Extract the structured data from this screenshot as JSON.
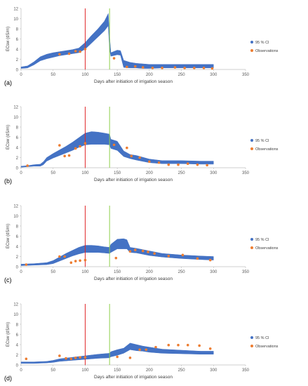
{
  "chart_data": [
    {
      "type": "scatter",
      "panel_label": "(a)",
      "xlabel": "Days after initiation of irrigation season",
      "ylabel": "ECsw (dS/m)",
      "xlim": [
        0,
        350
      ],
      "ylim": [
        0,
        12
      ],
      "xticks": [
        0,
        50,
        100,
        150,
        200,
        250,
        300,
        350
      ],
      "yticks": [
        0,
        2,
        4,
        6,
        8,
        10,
        12
      ],
      "grid": false,
      "legend_position": "right",
      "vlines": [
        {
          "x": 100,
          "color": "#e0262a"
        },
        {
          "x": 138,
          "color": "#8fcf4a"
        }
      ],
      "series": [
        {
          "name": "95 % CI",
          "kind": "band",
          "color": "#4472c4",
          "x": [
            0,
            10,
            20,
            30,
            40,
            50,
            60,
            70,
            80,
            90,
            100,
            110,
            120,
            130,
            136,
            138,
            140,
            150,
            155,
            160,
            170,
            180,
            190,
            200,
            220,
            250,
            280,
            300
          ],
          "low": [
            0.2,
            0.3,
            0.9,
            1.7,
            2.1,
            2.4,
            2.7,
            2.9,
            3.1,
            3.3,
            4.0,
            5.2,
            6.4,
            7.6,
            8.6,
            4.0,
            2.6,
            2.9,
            2.8,
            0.4,
            0.3,
            0.3,
            0.2,
            0.2,
            0.3,
            0.3,
            0.3,
            0.3
          ],
          "high": [
            0.5,
            0.7,
            1.5,
            2.5,
            3.0,
            3.3,
            3.5,
            3.7,
            3.9,
            4.2,
            5.3,
            6.7,
            8.0,
            9.5,
            11.0,
            6.5,
            3.3,
            3.8,
            3.7,
            1.8,
            1.4,
            1.2,
            1.1,
            1.0,
            1.0,
            1.0,
            1.0,
            1.0
          ]
        },
        {
          "name": "Observations",
          "kind": "points",
          "color": "#ed7d31",
          "x": [
            60,
            75,
            85,
            92,
            100,
            145,
            165,
            178,
            190,
            205,
            220,
            240,
            255,
            270,
            285,
            298
          ],
          "y": [
            3.0,
            3.1,
            3.6,
            3.5,
            4.0,
            2.2,
            0.5,
            0.6,
            0.4,
            0.3,
            0.3,
            0.4,
            0.3,
            0.3,
            0.3,
            0.2
          ]
        }
      ]
    },
    {
      "type": "scatter",
      "panel_label": "(b)",
      "xlabel": "Days after initiation of irrigation season",
      "ylabel": "ECsw (dS/m)",
      "xlim": [
        0,
        350
      ],
      "ylim": [
        0,
        12
      ],
      "xticks": [
        0,
        50,
        100,
        150,
        200,
        250,
        300,
        350
      ],
      "yticks": [
        0,
        2,
        4,
        6,
        8,
        10,
        12
      ],
      "grid": false,
      "legend_position": "right",
      "vlines": [
        {
          "x": 100,
          "color": "#e0262a"
        },
        {
          "x": 138,
          "color": "#8fcf4a"
        }
      ],
      "series": [
        {
          "name": "95 % CI",
          "kind": "band",
          "color": "#4472c4",
          "x": [
            0,
            10,
            20,
            30,
            35,
            40,
            50,
            60,
            70,
            80,
            90,
            100,
            110,
            120,
            130,
            138,
            140,
            150,
            160,
            170,
            180,
            200,
            220,
            250,
            280,
            300
          ],
          "low": [
            0.1,
            0.2,
            0.3,
            0.3,
            0.6,
            1.3,
            1.9,
            2.4,
            2.9,
            3.4,
            4.0,
            4.5,
            4.6,
            4.6,
            4.6,
            4.5,
            3.8,
            3.4,
            2.2,
            1.8,
            1.5,
            1.0,
            0.8,
            0.8,
            0.7,
            0.7
          ],
          "high": [
            0.3,
            0.4,
            0.6,
            0.7,
            1.2,
            2.0,
            2.8,
            3.5,
            4.2,
            5.0,
            5.9,
            6.8,
            7.1,
            7.0,
            6.8,
            6.6,
            5.6,
            5.2,
            3.3,
            2.6,
            2.4,
            1.7,
            1.4,
            1.4,
            1.3,
            1.3
          ]
        },
        {
          "name": "Observations",
          "kind": "points",
          "color": "#ed7d31",
          "x": [
            10,
            60,
            68,
            75,
            85,
            92,
            100,
            145,
            165,
            172,
            185,
            200,
            215,
            230,
            245,
            260,
            275,
            290
          ],
          "y": [
            0.4,
            4.4,
            2.3,
            2.4,
            3.8,
            4.2,
            4.8,
            4.5,
            3.9,
            2.3,
            2.0,
            1.2,
            1.0,
            0.6,
            0.6,
            0.8,
            0.6,
            0.5
          ]
        }
      ]
    },
    {
      "type": "scatter",
      "panel_label": "(c)",
      "xlabel": "Days after initiation of irrigation season",
      "ylabel": "ECsw (dS/m)",
      "xlim": [
        0,
        350
      ],
      "ylim": [
        0,
        12
      ],
      "xticks": [
        0,
        50,
        100,
        150,
        200,
        250,
        300,
        350
      ],
      "yticks": [
        0,
        2,
        4,
        6,
        8,
        10,
        12
      ],
      "grid": false,
      "legend_position": "right",
      "vlines": [
        {
          "x": 100,
          "color": "#e0262a"
        },
        {
          "x": 138,
          "color": "#8fcf4a"
        }
      ],
      "series": [
        {
          "name": "95 % CI",
          "kind": "band",
          "color": "#4472c4",
          "x": [
            0,
            20,
            40,
            50,
            60,
            70,
            80,
            90,
            100,
            110,
            120,
            130,
            138,
            140,
            150,
            160,
            165,
            170,
            180,
            200,
            220,
            250,
            280,
            300
          ],
          "low": [
            0.2,
            0.3,
            0.4,
            0.6,
            1.1,
            1.6,
            2.1,
            2.5,
            2.8,
            2.8,
            2.8,
            2.7,
            2.6,
            2.8,
            3.5,
            3.5,
            3.5,
            2.8,
            2.7,
            2.2,
            1.9,
            1.6,
            1.4,
            1.3
          ],
          "high": [
            0.5,
            0.6,
            0.8,
            1.2,
            1.9,
            2.6,
            3.2,
            3.8,
            4.2,
            4.2,
            4.1,
            3.9,
            3.8,
            4.4,
            5.4,
            5.5,
            5.3,
            3.8,
            3.6,
            3.1,
            2.6,
            2.3,
            2.1,
            2.0
          ]
        },
        {
          "name": "Observations",
          "kind": "points",
          "color": "#ed7d31",
          "x": [
            8,
            60,
            68,
            78,
            85,
            92,
            100,
            148,
            170,
            178,
            190,
            198,
            208,
            230,
            252,
            275,
            295
          ],
          "y": [
            0.4,
            2.0,
            2.0,
            0.8,
            1.1,
            1.2,
            1.3,
            1.7,
            3.0,
            3.3,
            3.1,
            2.9,
            2.6,
            2.1,
            2.3,
            1.6,
            1.3
          ]
        }
      ]
    },
    {
      "type": "scatter",
      "panel_label": "(d)",
      "xlabel": "Days after initiation of irrigation season",
      "ylabel": "ECsw (dS/m)",
      "xlim": [
        0,
        350
      ],
      "ylim": [
        0,
        12
      ],
      "xticks": [
        0,
        50,
        100,
        150,
        200,
        250,
        300,
        350
      ],
      "yticks": [
        0,
        2,
        4,
        6,
        8,
        10,
        12
      ],
      "grid": false,
      "legend_position": "right",
      "vlines": [
        {
          "x": 100,
          "color": "#e0262a"
        },
        {
          "x": 138,
          "color": "#8fcf4a"
        }
      ],
      "series": [
        {
          "name": "95 % CI",
          "kind": "band",
          "color": "#4472c4",
          "x": [
            0,
            20,
            40,
            50,
            60,
            80,
            100,
            120,
            138,
            140,
            150,
            160,
            170,
            180,
            190,
            200,
            220,
            250,
            280,
            300
          ],
          "low": [
            0.3,
            0.3,
            0.4,
            0.5,
            0.7,
            0.9,
            1.1,
            1.3,
            1.4,
            1.6,
            1.9,
            2.3,
            3.0,
            2.8,
            2.7,
            2.5,
            2.3,
            2.2,
            2.1,
            2.1
          ],
          "high": [
            0.6,
            0.6,
            0.7,
            0.9,
            1.2,
            1.5,
            1.8,
            2.1,
            2.3,
            2.6,
            3.0,
            3.3,
            4.3,
            4.0,
            3.7,
            3.5,
            3.1,
            2.9,
            2.7,
            2.7
          ]
        },
        {
          "name": "Observations",
          "kind": "points",
          "color": "#ed7d31",
          "x": [
            8,
            60,
            70,
            78,
            85,
            92,
            100,
            150,
            170,
            185,
            195,
            210,
            230,
            245,
            260,
            278,
            295
          ],
          "y": [
            1.2,
            1.8,
            1.3,
            1.2,
            1.4,
            1.5,
            1.5,
            1.6,
            1.4,
            3.0,
            3.0,
            3.5,
            3.9,
            3.9,
            3.9,
            3.8,
            3.2
          ]
        }
      ]
    }
  ]
}
